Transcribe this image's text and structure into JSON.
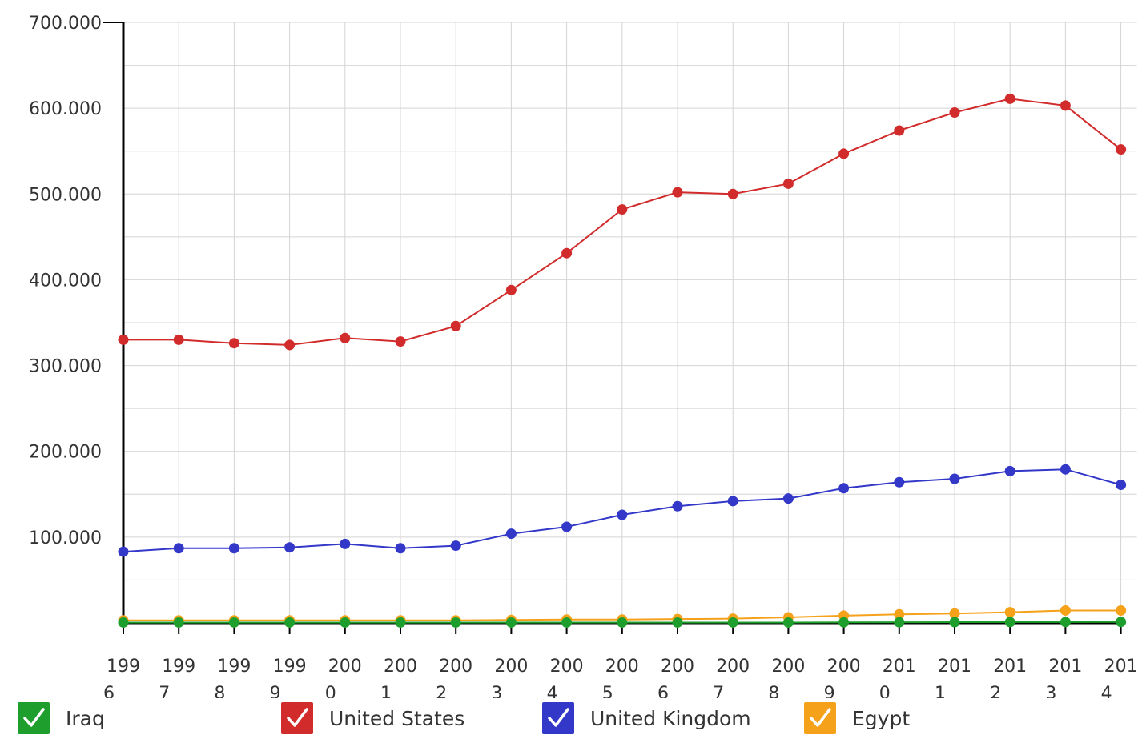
{
  "chart_data": {
    "type": "line",
    "categories": [
      "1996",
      "1997",
      "1998",
      "1999",
      "2000",
      "2001",
      "2002",
      "2003",
      "2004",
      "2005",
      "2006",
      "2007",
      "2008",
      "2009",
      "2010",
      "2011",
      "2012",
      "2013",
      "2014"
    ],
    "category_labels": [
      [
        "199",
        "6"
      ],
      [
        "199",
        "7"
      ],
      [
        "199",
        "8"
      ],
      [
        "199",
        "9"
      ],
      [
        "200",
        "0"
      ],
      [
        "200",
        "1"
      ],
      [
        "200",
        "2"
      ],
      [
        "200",
        "3"
      ],
      [
        "200",
        "4"
      ],
      [
        "200",
        "5"
      ],
      [
        "200",
        "6"
      ],
      [
        "200",
        "7"
      ],
      [
        "200",
        "8"
      ],
      [
        "200",
        "9"
      ],
      [
        "201",
        "0"
      ],
      [
        "201",
        "1"
      ],
      [
        "201",
        "2"
      ],
      [
        "201",
        "3"
      ],
      [
        "201",
        "4"
      ]
    ],
    "y_ticks": [
      {
        "value": 100000,
        "label": "100.000"
      },
      {
        "value": 200000,
        "label": "200.000"
      },
      {
        "value": 300000,
        "label": "300.000"
      },
      {
        "value": 400000,
        "label": "400.000"
      },
      {
        "value": 500000,
        "label": "500.000"
      },
      {
        "value": 600000,
        "label": "600.000"
      },
      {
        "value": 700000,
        "label": "700.000"
      }
    ],
    "ylim": [
      0,
      700000
    ],
    "grid": true,
    "legend_position": "bottom",
    "series": [
      {
        "name": "Iraq",
        "color": "#1e9e2c",
        "values": [
          500,
          500,
          500,
          500,
          500,
          500,
          500,
          500,
          500,
          500,
          500,
          500,
          500,
          700,
          800,
          900,
          1000,
          1100,
          1200
        ]
      },
      {
        "name": "United States",
        "color": "#d12b2b",
        "values": [
          330000,
          330000,
          326000,
          324000,
          332000,
          328000,
          346000,
          388000,
          431000,
          482000,
          502000,
          500000,
          512000,
          547000,
          574000,
          595000,
          611000,
          603000,
          552000
        ]
      },
      {
        "name": "United Kingdom",
        "color": "#3338c9",
        "values": [
          83000,
          87000,
          87000,
          88000,
          92000,
          87000,
          90000,
          104000,
          112000,
          126000,
          136000,
          142000,
          145000,
          157000,
          164000,
          168000,
          177000,
          179000,
          161000
        ]
      },
      {
        "name": "Egypt",
        "color": "#f5a11a",
        "values": [
          3000,
          3000,
          3000,
          3000,
          3000,
          3000,
          3000,
          3500,
          4000,
          4000,
          4500,
          5000,
          6500,
          8500,
          10000,
          11000,
          12500,
          14500,
          14500
        ]
      }
    ]
  }
}
